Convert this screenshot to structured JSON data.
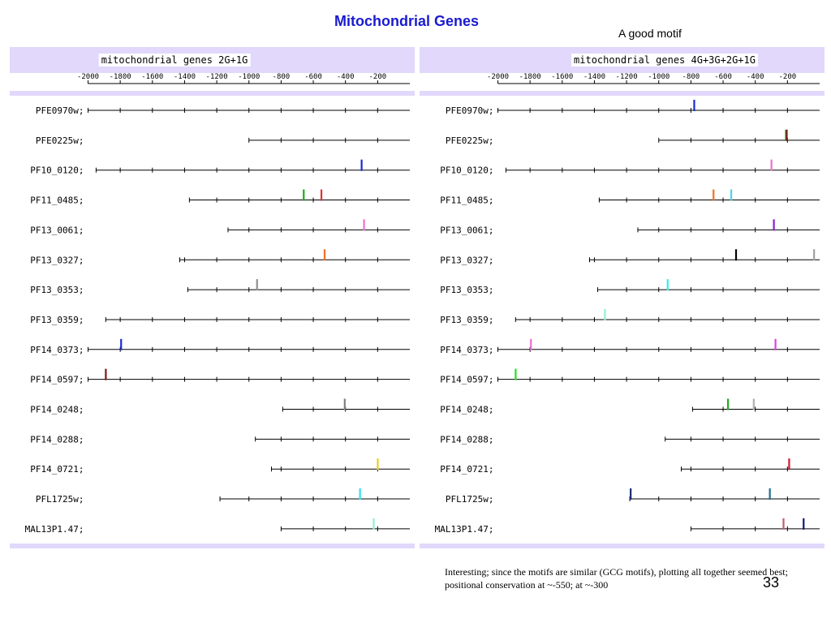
{
  "title": "Mitochondrial Genes",
  "subtitle": "A good motif",
  "note": "Interesting; since the motifs are similar (GCG motifs), plotting all together seemed best; positional conservation at ~-550; at ~-300",
  "page_number": "33",
  "panels": [
    {
      "label": "mitochondrial genes 2G+1G",
      "axis_ticks": [
        "-2000",
        "-1800",
        "-1600",
        "-1400",
        "-1200",
        "-1000",
        "-800",
        "-600",
        "-400",
        "-200"
      ]
    },
    {
      "label": "mitochondrial genes 4G+3G+2G+1G",
      "axis_ticks": [
        "-2000",
        "-1800",
        "-1600",
        "-1400",
        "-1200",
        "-1000",
        "-800",
        "-600",
        "-400",
        "-200"
      ]
    }
  ],
  "genes": [
    "PFE0970w;",
    "PFE0225w;",
    "PF10_0120;",
    "PF11_0485;",
    "PF13_0061;",
    "PF13_0327;",
    "PF13_0353;",
    "PF13_0359;",
    "PF14_0373;",
    "PF14_0597;",
    "PF14_0248;",
    "PF14_0288;",
    "PF14_0721;",
    "PFL1725w;",
    "MAL13P1.47;"
  ],
  "chart_data": [
    {
      "type": "motif-position-map",
      "title": "mitochondrial genes 2G+1G",
      "x_range": [
        -2000,
        0
      ],
      "tick_values": [
        -2000,
        -1800,
        -1600,
        -1400,
        -1200,
        -1000,
        -800,
        -600,
        -400,
        -200
      ],
      "rows": [
        {
          "gene": "PFE0970w;",
          "start": -2000,
          "motifs": []
        },
        {
          "gene": "PFE0225w;",
          "start": -1000,
          "motifs": []
        },
        {
          "gene": "PF10_0120;",
          "start": -1950,
          "motifs": [
            {
              "pos": -300,
              "color": "#1a2bd4"
            }
          ]
        },
        {
          "gene": "PF11_0485;",
          "start": -1370,
          "motifs": [
            {
              "pos": -660,
              "color": "#1faa1f"
            },
            {
              "pos": -550,
              "color": "#e03030"
            }
          ]
        },
        {
          "gene": "PF13_0061;",
          "start": -1130,
          "motifs": [
            {
              "pos": -285,
              "color": "#ee6fcf"
            }
          ]
        },
        {
          "gene": "PF13_0327;",
          "start": -1430,
          "motifs": [
            {
              "pos": -530,
              "color": "#f07020"
            }
          ]
        },
        {
          "gene": "PF13_0353;",
          "start": -1380,
          "motifs": [
            {
              "pos": -950,
              "color": "#909090"
            }
          ]
        },
        {
          "gene": "PF13_0359;",
          "start": -1890,
          "motifs": []
        },
        {
          "gene": "PF14_0373;",
          "start": -2000,
          "motifs": [
            {
              "pos": -1795,
              "color": "#1a2bd4"
            }
          ]
        },
        {
          "gene": "PF14_0597;",
          "start": -2000,
          "motifs": [
            {
              "pos": -1890,
              "color": "#7a1a1a"
            }
          ]
        },
        {
          "gene": "PF14_0248;",
          "start": -790,
          "motifs": [
            {
              "pos": -405,
              "color": "#808080"
            }
          ]
        },
        {
          "gene": "PF14_0288;",
          "start": -960,
          "motifs": []
        },
        {
          "gene": "PF14_0721;",
          "start": -860,
          "motifs": [
            {
              "pos": -200,
              "color": "#e8d020"
            }
          ]
        },
        {
          "gene": "PFL1725w;",
          "start": -1180,
          "motifs": [
            {
              "pos": -310,
              "color": "#30e0f0"
            }
          ]
        },
        {
          "gene": "MAL13P1.47;",
          "start": -800,
          "motifs": [
            {
              "pos": -225,
              "color": "#90f0d0"
            }
          ]
        }
      ]
    },
    {
      "type": "motif-position-map",
      "title": "mitochondrial genes 4G+3G+2G+1G",
      "x_range": [
        -2000,
        0
      ],
      "tick_values": [
        -2000,
        -1800,
        -1600,
        -1400,
        -1200,
        -1000,
        -800,
        -600,
        -400,
        -200
      ],
      "rows": [
        {
          "gene": "PFE0970w;",
          "start": -2000,
          "motifs": [
            {
              "pos": -780,
              "color": "#1a2bd4"
            }
          ]
        },
        {
          "gene": "PFE0225w;",
          "start": -1000,
          "motifs": [
            {
              "pos": -210,
              "color": "#1faa1f"
            },
            {
              "pos": -205,
              "color": "#7a1a1a"
            }
          ]
        },
        {
          "gene": "PF10_0120;",
          "start": -1950,
          "motifs": [
            {
              "pos": -300,
              "color": "#ee6fcf"
            }
          ]
        },
        {
          "gene": "PF11_0485;",
          "start": -1370,
          "motifs": [
            {
              "pos": -660,
              "color": "#f07020"
            },
            {
              "pos": -550,
              "color": "#50d0e0"
            }
          ]
        },
        {
          "gene": "PF13_0061;",
          "start": -1130,
          "motifs": [
            {
              "pos": -285,
              "color": "#8a20d0"
            }
          ]
        },
        {
          "gene": "PF13_0327;",
          "start": -1430,
          "motifs": [
            {
              "pos": -520,
              "color": "#000000"
            },
            {
              "pos": -35,
              "color": "#a0a0a0"
            }
          ]
        },
        {
          "gene": "PF13_0353;",
          "start": -1380,
          "motifs": [
            {
              "pos": -945,
              "color": "#30f0e0"
            }
          ]
        },
        {
          "gene": "PF13_0359;",
          "start": -1890,
          "motifs": [
            {
              "pos": -1335,
              "color": "#90f0d0"
            }
          ]
        },
        {
          "gene": "PF14_0373;",
          "start": -2000,
          "motifs": [
            {
              "pos": -1795,
              "color": "#ee6fcf"
            },
            {
              "pos": -275,
              "color": "#e040e0"
            }
          ]
        },
        {
          "gene": "PF14_0597;",
          "start": -2000,
          "motifs": [
            {
              "pos": -1890,
              "color": "#20e020"
            }
          ]
        },
        {
          "gene": "PF14_0248;",
          "start": -790,
          "motifs": [
            {
              "pos": -570,
              "color": "#1faa1f"
            },
            {
              "pos": -410,
              "color": "#b0b0b0"
            }
          ]
        },
        {
          "gene": "PF14_0288;",
          "start": -960,
          "motifs": []
        },
        {
          "gene": "PF14_0721;",
          "start": -860,
          "motifs": [
            {
              "pos": -190,
              "color": "#d01830"
            }
          ]
        },
        {
          "gene": "PFL1725w;",
          "start": -1180,
          "motifs": [
            {
              "pos": -1175,
              "color": "#1a2a70"
            },
            {
              "pos": -310,
              "color": "#207090"
            }
          ]
        },
        {
          "gene": "MAL13P1.47;",
          "start": -800,
          "motifs": [
            {
              "pos": -225,
              "color": "#c06060"
            },
            {
              "pos": -100,
              "color": "#101880"
            }
          ]
        }
      ]
    }
  ]
}
